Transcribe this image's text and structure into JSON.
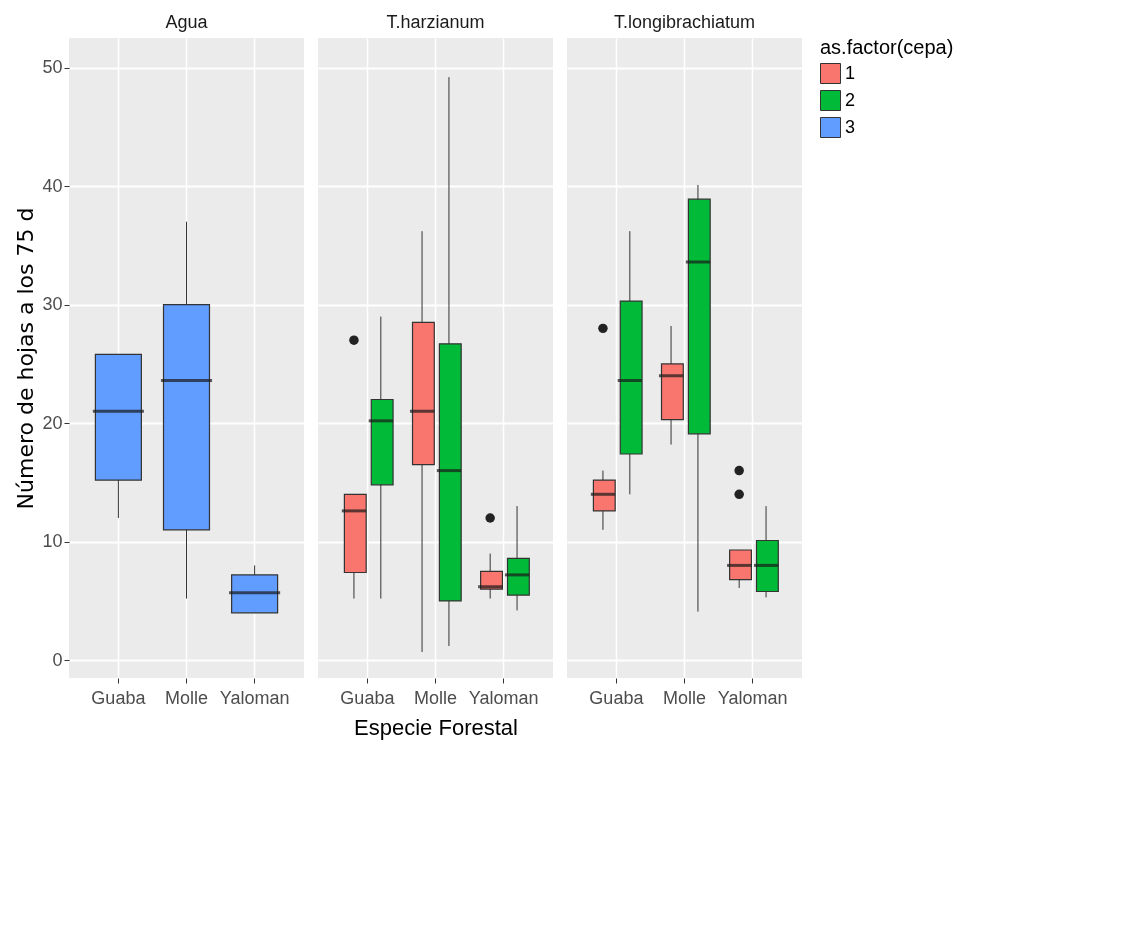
{
  "chart_data": [
    {
      "type": "box",
      "title": "Agua",
      "ylabel": "Número de hojas a los  75 d",
      "categories": [
        "Guaba",
        "Molle",
        "Yaloman"
      ],
      "ylim": [
        -1.5,
        52.5
      ],
      "yticks": [
        0,
        10,
        20,
        30,
        40,
        50
      ],
      "grid": true,
      "legend": false,
      "series": [
        {
          "color": "#619cff",
          "boxes": [
            {
              "low": 12,
              "q1": 15.2,
              "median": 21,
              "q3": 25.8,
              "high": 25.8
            },
            {
              "low": 5.2,
              "q1": 11,
              "median": 23.6,
              "q3": 30,
              "high": 37
            },
            {
              "low": 4,
              "q1": 4,
              "median": 5.7,
              "q3": 7.2,
              "high": 8
            }
          ]
        }
      ]
    },
    {
      "type": "box",
      "title": "T.harzianum",
      "xlabel": "Especie Forestal",
      "categories": [
        "Guaba",
        "Molle",
        "Yaloman"
      ],
      "ylim": [
        -1.5,
        52.5
      ],
      "yticks": [
        0,
        10,
        20,
        30,
        40,
        50
      ],
      "grid": true,
      "legend": false,
      "tick_labels": "x",
      "series": [
        {
          "color": "#f8766d",
          "boxes": [
            {
              "low": 5.2,
              "q1": 7.4,
              "median": 12.6,
              "q3": 14,
              "high": 14,
              "outliers": [
                27
              ]
            },
            {
              "low": 0.7,
              "q1": 16.5,
              "median": 21,
              "q3": 28.5,
              "high": 36.2
            },
            {
              "low": 5.2,
              "q1": 6,
              "median": 6.2,
              "q3": 7.5,
              "high": 9,
              "outliers": [
                12
              ]
            }
          ]
        },
        {
          "color": "#00ba38",
          "boxes": [
            {
              "low": 5.2,
              "q1": 14.8,
              "median": 20.2,
              "q3": 22,
              "high": 29
            },
            {
              "low": 1.2,
              "q1": 5,
              "median": 16,
              "q3": 26.7,
              "high": 49.2
            },
            {
              "low": 4.2,
              "q1": 5.5,
              "median": 7.2,
              "q3": 8.6,
              "high": 13
            }
          ]
        }
      ]
    },
    {
      "type": "box",
      "title": "T.longibrachiatum",
      "categories": [
        "Guaba",
        "Molle",
        "Yaloman"
      ],
      "ylim": [
        -1.5,
        52.5
      ],
      "yticks": [
        0,
        10,
        20,
        30,
        40,
        50
      ],
      "grid": true,
      "legend": "right",
      "legend_title": "as.factor(cepa)",
      "tick_labels": "x",
      "series": [
        {
          "name": "1",
          "color": "#f8766d",
          "boxes": [
            {
              "low": 11,
              "q1": 12.6,
              "median": 14,
              "q3": 15.2,
              "high": 16,
              "outliers": [
                28
              ]
            },
            {
              "low": 18.2,
              "q1": 20.3,
              "median": 24,
              "q3": 25,
              "high": 28.2
            },
            {
              "low": 6.1,
              "q1": 6.8,
              "median": 8,
              "q3": 9.3,
              "high": 9.3,
              "outliers": [
                14,
                16
              ]
            }
          ]
        },
        {
          "name": "2",
          "color": "#00ba38",
          "boxes": [
            {
              "low": 14,
              "q1": 17.4,
              "median": 23.6,
              "q3": 30.3,
              "high": 36.2
            },
            {
              "low": 4.1,
              "q1": 19.1,
              "median": 33.6,
              "q3": 38.9,
              "high": 40.1
            },
            {
              "low": 5.3,
              "q1": 5.8,
              "median": 8,
              "q3": 10.1,
              "high": 13
            }
          ]
        },
        {
          "name": "3",
          "color": "#619cff",
          "boxes": [
            null,
            null,
            null
          ]
        }
      ]
    }
  ]
}
